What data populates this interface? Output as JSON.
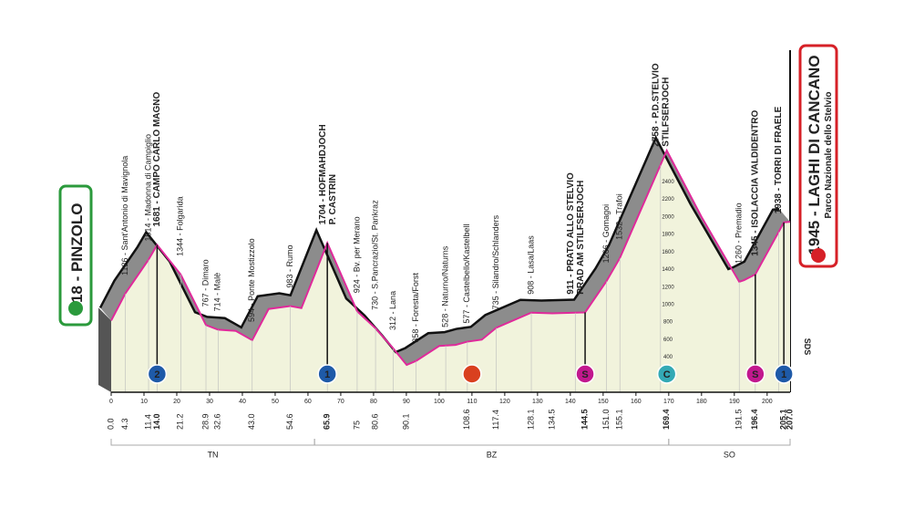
{
  "start": {
    "label": "818 - PINZOLO"
  },
  "finish": {
    "label": "1945 - LAGHI DI CANCANO",
    "sublabel": "Parco Nazionale dello Stelvio"
  },
  "sponsor_mark": "SDS",
  "chart_data": {
    "type": "area",
    "x": [
      0,
      4.3,
      11.4,
      14.0,
      21.2,
      28.9,
      32.6,
      38,
      43.0,
      48,
      54.6,
      58,
      65.9,
      75.0,
      80.6,
      86,
      90.1,
      93,
      100,
      105,
      108.6,
      113,
      117.4,
      128.1,
      134.5,
      144.5,
      151.0,
      155.1,
      169.4,
      180,
      191.5,
      193,
      196.4,
      205.1,
      207.0
    ],
    "values": [
      818,
      1126,
      1514,
      1681,
      1344,
      767,
      714,
      700,
      594,
      950,
      983,
      960,
      1704,
      924,
      730,
      500,
      312,
      358,
      528,
      540,
      577,
      600,
      735,
      908,
      900,
      911,
      1266,
      1532,
      2758,
      2000,
      1260,
      1280,
      1345,
      1938,
      1945
    ],
    "xlim": [
      0,
      207
    ],
    "ylim": [
      0,
      2800
    ],
    "xticks": [
      0,
      10,
      20,
      30,
      40,
      50,
      60,
      70,
      80,
      90,
      100,
      110,
      120,
      130,
      140,
      150,
      160,
      170,
      180,
      190,
      200
    ],
    "yticks": [
      400,
      600,
      800,
      1000,
      1200,
      1400,
      1600,
      1800,
      2000,
      2200,
      2400
    ],
    "line_color": "#e0299b",
    "band_color": "#8c8c8c",
    "fill_color": "#f1f3dc",
    "km_labels": [
      {
        "value": 0,
        "label": "0.0"
      },
      4.3,
      11.4,
      {
        "value": 14,
        "label": "14.0",
        "bold": true
      },
      21.2,
      28.9,
      32.6,
      {
        "value": 43,
        "label": "43.0"
      },
      54.6,
      {
        "value": 65.9,
        "label": "65.9",
        "bold": true
      },
      75,
      80.6,
      90.1,
      108.6,
      117.4,
      128.1,
      134.5,
      {
        "value": 144.5,
        "label": "144.5",
        "bold": true
      },
      {
        "value": 151,
        "label": "151.0"
      },
      155.1,
      {
        "value": 169.4,
        "label": "169.4",
        "bold": true
      },
      191.5,
      {
        "value": 196.4,
        "label": "196.4",
        "bold": true
      },
      {
        "value": 205.1,
        "label": "205.1",
        "bold": true
      },
      {
        "value": 207,
        "label": "207.0",
        "bold": true
      }
    ],
    "waypoints": [
      {
        "km": 4.3,
        "label": "1126 - Sant'Antonio di Mavignola"
      },
      {
        "km": 11.4,
        "label": "1514 - Madonna di Campiglio"
      },
      {
        "km": 14.0,
        "label": "1681 - CAMPO CARLO MAGNO",
        "bold": true
      },
      {
        "km": 21.2,
        "label": "1344 - Folgarida"
      },
      {
        "km": 28.9,
        "label": "767 - Dimaro"
      },
      {
        "km": 32.6,
        "label": "714 - Malè"
      },
      {
        "km": 43.0,
        "label": "594 - Ponte Mostizzolo"
      },
      {
        "km": 54.6,
        "label": "983 - Rumo"
      },
      {
        "km": 65.9,
        "label": "1704 - HOFMAHDJOCH",
        "label2": "P. CASTRIN",
        "bold": true
      },
      {
        "km": 75.0,
        "label": "924 - Bv. per Merano"
      },
      {
        "km": 80.6,
        "label": "730 - S.Pancrazio/St. Pankraz"
      },
      {
        "km": 86,
        "label": "312 - Lana"
      },
      {
        "km": 93,
        "label": "358 - Foresta/Forst"
      },
      {
        "km": 102,
        "label": "528 - Naturno/Naturns"
      },
      {
        "km": 108.6,
        "label": "577 - Castelbello/Kastelbell"
      },
      {
        "km": 117.4,
        "label": "735 - Silandro/Schlanders"
      },
      {
        "km": 128.1,
        "label": "908 - Lasa/Laas"
      },
      {
        "km": 141.5,
        "label": "911 - PRATO ALLO STELVIO",
        "label2": "PRAD AM STILFSERJOCH",
        "bold": true
      },
      {
        "km": 151.0,
        "label": "1266 - Gomagoi"
      },
      {
        "km": 155.1,
        "label": "1532 - Trafoi"
      },
      {
        "km": 167.5,
        "label": "2758 - P.D.STELVIO",
        "label2": "STILFSERJOCH",
        "bold": true
      },
      {
        "km": 191.5,
        "label": "1260 - Premadio"
      },
      {
        "km": 196.4,
        "label": "1345 - ISOLACCIA VALDIDENTRO",
        "bold": true
      },
      {
        "km": 203.5,
        "label": "1938 - TORRI DI FRAELE",
        "bold": true
      }
    ],
    "markers": [
      {
        "km": 14.0,
        "label": "2",
        "color": "#1e5aa8",
        "line": true
      },
      {
        "km": 65.9,
        "label": "1",
        "color": "#1e5aa8",
        "line": true
      },
      {
        "km": 144.5,
        "label": "S",
        "color": "#c2188e",
        "line": true
      },
      {
        "km": 169.4,
        "label": "C",
        "color": "#33a9b5",
        "line": false
      },
      {
        "km": 196.4,
        "label": "S",
        "color": "#c2188e",
        "line": true
      },
      {
        "km": 205.1,
        "label": "1",
        "color": "#1e5aa8",
        "line": true
      }
    ],
    "feed_zone": {
      "from": 108,
      "to": 112,
      "color": "#f29a63"
    },
    "regions": [
      {
        "label": "TN",
        "from": 0,
        "to": 62
      },
      {
        "label": "BZ",
        "from": 62,
        "to": 170
      },
      {
        "label": "SO",
        "from": 170,
        "to": 207
      }
    ]
  }
}
